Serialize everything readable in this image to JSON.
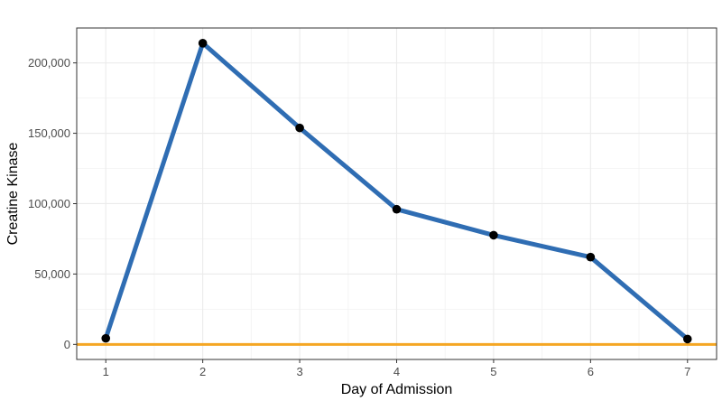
{
  "chart_data": {
    "type": "line",
    "title": "",
    "xlabel": "Day of Admission",
    "ylabel": "Creatine Kinase",
    "x": [
      1,
      2,
      3,
      4,
      5,
      6,
      7
    ],
    "x_tick_labels": [
      "1",
      "2",
      "3",
      "4",
      "5",
      "6",
      "7"
    ],
    "y_ticks": [
      0,
      50000,
      100000,
      150000,
      200000
    ],
    "y_tick_labels": [
      "0",
      "50,000",
      "100,000",
      "150,000",
      "200,000"
    ],
    "xlim": [
      0.7,
      7.3
    ],
    "ylim": [
      -10700,
      224800
    ],
    "series": [
      {
        "values": [
          4300,
          214000,
          153800,
          96000,
          77600,
          62000,
          3800
        ],
        "color": "#2f6db3"
      }
    ],
    "reference_line": {
      "y": 0,
      "color": "#f5a623"
    },
    "point_color": "#000000",
    "grid": true
  }
}
